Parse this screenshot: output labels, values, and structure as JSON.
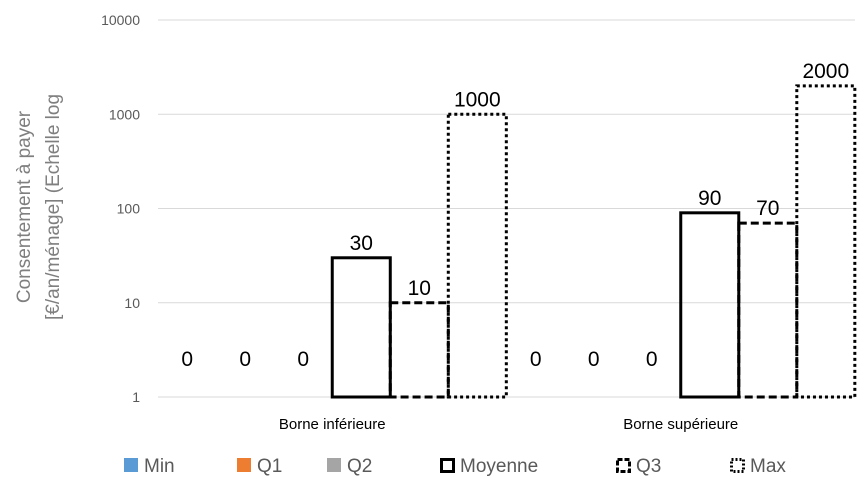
{
  "chart_data": {
    "type": "bar",
    "y_scale": "log",
    "ylim": [
      1,
      10000
    ],
    "yticks": [
      "1",
      "10",
      "100",
      "1000",
      "10000"
    ],
    "ylabel_lines": [
      "Consentement à payer",
      "[€/an/ménage] (Echelle log"
    ],
    "categories": [
      "Borne inférieure",
      "Borne supérieure"
    ],
    "series": [
      {
        "name": "Min",
        "values": [
          0,
          0
        ],
        "color": "#5B9BD5",
        "border": "solid-fill"
      },
      {
        "name": "Q1",
        "values": [
          0,
          0
        ],
        "color": "#ED7D31",
        "border": "solid-fill"
      },
      {
        "name": "Q2",
        "values": [
          0,
          0
        ],
        "color": "#A5A5A5",
        "border": "solid-fill"
      },
      {
        "name": "Moyenne",
        "values": [
          30,
          90
        ],
        "color": "#000000",
        "border": "solid"
      },
      {
        "name": "Q3",
        "values": [
          10,
          70
        ],
        "color": "#000000",
        "border": "dashed"
      },
      {
        "name": "Max",
        "values": [
          1000,
          2000
        ],
        "color": "#000000",
        "border": "dotted"
      }
    ],
    "data_labels": [
      [
        "0",
        "0",
        "0",
        "30",
        "10",
        "1000"
      ],
      [
        "0",
        "0",
        "0",
        "90",
        "70",
        "2000"
      ]
    ],
    "grid": true,
    "legend_position": "bottom"
  }
}
